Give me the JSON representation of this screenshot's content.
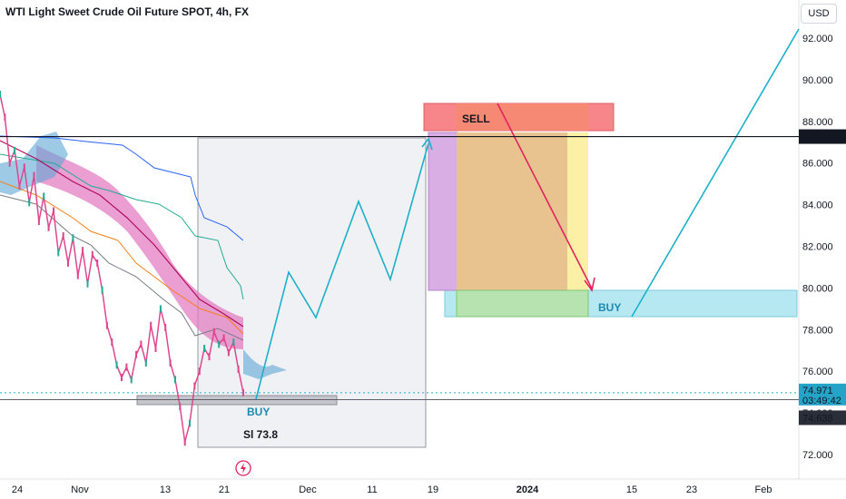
{
  "header": {
    "title": "WTI Light Sweet Crude Oil Future SPOT, 4h, FX",
    "currency": "USD"
  },
  "colors": {
    "candle": "#e0468f",
    "cloud_pink": "#e37dc3",
    "cloud_blue": "#5fa7d4",
    "zigzag": "#1bb0c9",
    "sell_arrow": "#e0245e",
    "sell_box": "#f7868a",
    "sell_zone": "#e9c38f",
    "buy_box": "#b6e8f2",
    "buy_green": "#b7e3b0",
    "purple": "#d8aee5",
    "yellow": "#fbf0a5"
  },
  "chart_data": {
    "type": "line",
    "ylim": [
      71.5,
      93.6
    ],
    "yticks": [
      {
        "value": 92,
        "label": "92.000"
      },
      {
        "value": 90,
        "label": "90.000"
      },
      {
        "value": 88,
        "label": "88.000"
      },
      {
        "value": 86,
        "label": "86.000"
      },
      {
        "value": 84,
        "label": "84.000"
      },
      {
        "value": 82,
        "label": "82.000"
      },
      {
        "value": 80,
        "label": "80.000"
      },
      {
        "value": 78,
        "label": "78.000"
      },
      {
        "value": 76,
        "label": "76.000"
      },
      {
        "value": 74,
        "label": "74.000"
      },
      {
        "value": 72,
        "label": "72.000"
      }
    ],
    "xticks": [
      {
        "label": "24",
        "bold": false
      },
      {
        "label": "Nov",
        "bold": false
      },
      {
        "label": "13",
        "bold": false
      },
      {
        "label": "21",
        "bold": false
      },
      {
        "label": "Dec",
        "bold": false
      },
      {
        "label": "11",
        "bold": false
      },
      {
        "label": "19",
        "bold": false
      },
      {
        "label": "2024",
        "bold": true
      },
      {
        "label": "15",
        "bold": false
      },
      {
        "label": "23",
        "bold": false
      },
      {
        "label": "Feb",
        "bold": false
      }
    ],
    "price_markers": [
      {
        "label": "87.270",
        "value": 87.27
      },
      {
        "label": "74.971",
        "sub": "03:49:42",
        "value": 74.971
      },
      {
        "label": "74.638",
        "value": 74.638
      }
    ],
    "annotations": {
      "sell": "SELL",
      "buy_top": "BUY",
      "buy_bottom": "BUY",
      "sl": "Sl 73.8"
    },
    "price_path": [
      {
        "t": 0.0,
        "v": 89.3
      },
      {
        "t": 0.02,
        "v": 88.2
      },
      {
        "t": 0.04,
        "v": 86.0
      },
      {
        "t": 0.06,
        "v": 86.6
      },
      {
        "t": 0.08,
        "v": 84.9
      },
      {
        "t": 0.1,
        "v": 85.8
      },
      {
        "t": 0.12,
        "v": 84.1
      },
      {
        "t": 0.14,
        "v": 85.4
      },
      {
        "t": 0.16,
        "v": 83.2
      },
      {
        "t": 0.18,
        "v": 84.4
      },
      {
        "t": 0.2,
        "v": 82.9
      },
      {
        "t": 0.22,
        "v": 83.7
      },
      {
        "t": 0.24,
        "v": 81.7
      },
      {
        "t": 0.26,
        "v": 82.5
      },
      {
        "t": 0.28,
        "v": 81.2
      },
      {
        "t": 0.3,
        "v": 82.4
      },
      {
        "t": 0.32,
        "v": 80.6
      },
      {
        "t": 0.34,
        "v": 81.8
      },
      {
        "t": 0.36,
        "v": 80.2
      },
      {
        "t": 0.38,
        "v": 81.6
      },
      {
        "t": 0.4,
        "v": 81.2
      },
      {
        "t": 0.42,
        "v": 79.9
      },
      {
        "t": 0.44,
        "v": 78.2
      },
      {
        "t": 0.46,
        "v": 77.4
      },
      {
        "t": 0.48,
        "v": 76.3
      },
      {
        "t": 0.5,
        "v": 75.7
      },
      {
        "t": 0.52,
        "v": 76.2
      },
      {
        "t": 0.54,
        "v": 75.6
      },
      {
        "t": 0.56,
        "v": 76.8
      },
      {
        "t": 0.58,
        "v": 77.3
      },
      {
        "t": 0.6,
        "v": 76.4
      },
      {
        "t": 0.62,
        "v": 78.2
      },
      {
        "t": 0.64,
        "v": 77.1
      },
      {
        "t": 0.66,
        "v": 79.0
      },
      {
        "t": 0.68,
        "v": 78.1
      },
      {
        "t": 0.7,
        "v": 76.4
      },
      {
        "t": 0.72,
        "v": 75.6
      },
      {
        "t": 0.74,
        "v": 74.3
      },
      {
        "t": 0.76,
        "v": 72.6
      },
      {
        "t": 0.78,
        "v": 73.5
      },
      {
        "t": 0.8,
        "v": 75.3
      },
      {
        "t": 0.82,
        "v": 76.0
      },
      {
        "t": 0.84,
        "v": 77.1
      },
      {
        "t": 0.86,
        "v": 76.7
      },
      {
        "t": 0.88,
        "v": 77.9
      },
      {
        "t": 0.9,
        "v": 77.3
      },
      {
        "t": 0.92,
        "v": 77.6
      },
      {
        "t": 0.94,
        "v": 76.9
      },
      {
        "t": 0.96,
        "v": 77.4
      },
      {
        "t": 0.98,
        "v": 76.1
      },
      {
        "t": 1.0,
        "v": 74.97
      }
    ]
  }
}
